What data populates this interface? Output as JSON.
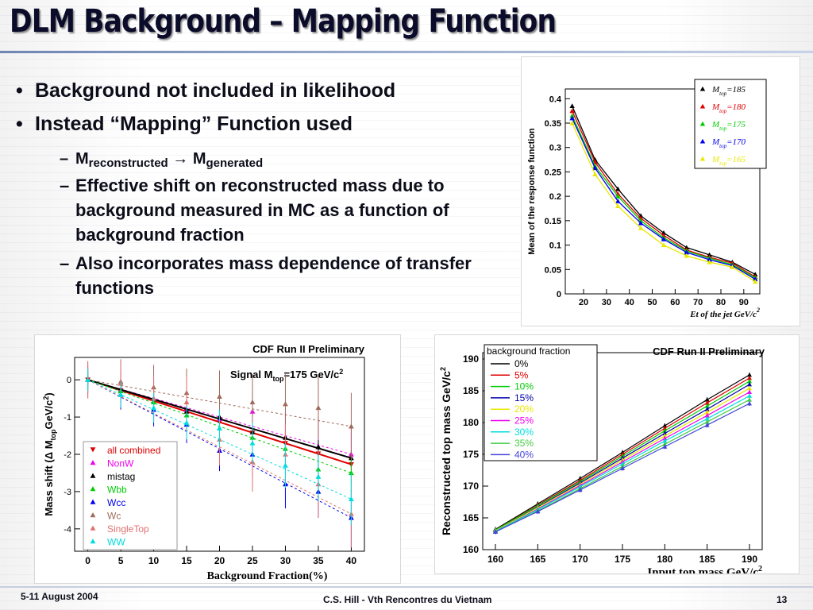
{
  "slide": {
    "title": "DLM Background – Mapping Function",
    "bullets": [
      {
        "text": "Background not included in likelihood"
      },
      {
        "text": "Instead “Mapping” Function used"
      }
    ],
    "mapping": {
      "m": "M",
      "sub1": "reconstructed",
      "arrow": "→",
      "m2": "M",
      "sub2": "generated"
    },
    "sub_bullets": [
      "Effective shift on reconstructed mass due to background measured in MC as a function of background fraction",
      "Also incorporates mass dependence of transfer functions"
    ],
    "footer": {
      "date": "5-11 August 2004",
      "author": "C.S. Hill  - Vth Rencontres du Vietnam",
      "page": "13"
    }
  },
  "chart_data": [
    {
      "type": "line",
      "title": "",
      "xlabel": "Et of the jet GeV/c",
      "xlabel_sup": "2",
      "ylabel": "Mean of the response function",
      "xlim": [
        12,
        97
      ],
      "ylim": [
        0,
        0.42
      ],
      "x_ticks": [
        20,
        30,
        40,
        50,
        60,
        70,
        80,
        90
      ],
      "y_ticks": [
        0,
        0.05,
        0.1,
        0.15,
        0.2,
        0.25,
        0.3,
        0.35,
        0.4
      ],
      "x": [
        15,
        25,
        35,
        45,
        55,
        65,
        75,
        85,
        95
      ],
      "legend_position": "top-right",
      "series": [
        {
          "name": "M top=185",
          "label_main": "M",
          "label_sub": "top",
          "label_rest": "=185",
          "color": "#000000",
          "values": [
            0.385,
            0.275,
            0.215,
            0.16,
            0.125,
            0.095,
            0.08,
            0.065,
            0.04
          ]
        },
        {
          "name": "M top=180",
          "label_main": "M",
          "label_sub": "top",
          "label_rest": "=180",
          "color": "#e00000",
          "values": [
            0.375,
            0.27,
            0.205,
            0.155,
            0.12,
            0.09,
            0.075,
            0.063,
            0.035
          ]
        },
        {
          "name": "M top=175",
          "label_main": "M",
          "label_sub": "top",
          "label_rest": "=175",
          "color": "#00cc00",
          "values": [
            0.365,
            0.262,
            0.2,
            0.15,
            0.115,
            0.088,
            0.073,
            0.06,
            0.033
          ]
        },
        {
          "name": "M top=170",
          "label_main": "M",
          "label_sub": "top",
          "label_rest": "=170",
          "color": "#0000ee",
          "values": [
            0.36,
            0.258,
            0.19,
            0.145,
            0.112,
            0.085,
            0.07,
            0.058,
            0.03
          ]
        },
        {
          "name": "M top=165",
          "label_main": "M",
          "label_sub": "top",
          "label_rest": "=165",
          "color": "#e8e800",
          "values": [
            0.35,
            0.245,
            0.18,
            0.135,
            0.1,
            0.078,
            0.065,
            0.055,
            0.025
          ]
        }
      ]
    },
    {
      "type": "scatter",
      "title": "CDF Run II Preliminary",
      "annotation": {
        "pre": "Signal M",
        "sub": "top",
        "post": "=175 GeV/c",
        "sup": "2"
      },
      "xlabel": "Background Fraction(%)",
      "ylabel": {
        "pre": "Mass shift (Δ M",
        "sub": "top",
        "post": "GeV/c",
        "sup": "2",
        "close": ")"
      },
      "xlim": [
        -2,
        42
      ],
      "ylim": [
        -4.6,
        0.6
      ],
      "x_ticks": [
        0,
        5,
        10,
        15,
        20,
        25,
        30,
        35,
        40
      ],
      "y_ticks": [
        0,
        -1,
        -2,
        -3,
        -4
      ],
      "x": [
        0,
        5,
        10,
        15,
        20,
        25,
        30,
        35,
        40
      ],
      "legend_position": "bottom-left",
      "series": [
        {
          "name": "all combined",
          "color": "#e00000",
          "marker": "down",
          "values": [
            0,
            -0.28,
            -0.57,
            -0.85,
            -1.13,
            -1.42,
            -1.7,
            -1.98,
            -2.27
          ],
          "err": [
            0.05,
            0.05,
            0.06,
            0.07,
            0.08,
            0.09,
            0.1,
            0.12,
            0.14
          ]
        },
        {
          "name": "NonW",
          "color": "#ee00ee",
          "marker": "up",
          "values": [
            0,
            -0.26,
            -0.5,
            -0.8,
            -1.05,
            -0.85,
            -1.55,
            -1.8,
            -2.0
          ],
          "err": [
            0.4,
            0.5,
            0.5,
            0.6,
            0.6,
            0.7,
            0.7,
            0.8,
            0.8
          ]
        },
        {
          "name": "mistag",
          "color": "#000000",
          "marker": "up",
          "values": [
            0,
            -0.3,
            -0.6,
            -0.85,
            -1.0,
            -1.4,
            -1.55,
            -1.8,
            -2.1
          ],
          "err": [
            0.1,
            0.1,
            0.12,
            0.14,
            0.15,
            0.16,
            0.17,
            0.18,
            0.2
          ]
        },
        {
          "name": "Wbb",
          "color": "#00cc00",
          "marker": "up",
          "values": [
            0,
            -0.3,
            -0.6,
            -0.95,
            -1.3,
            -1.55,
            -1.85,
            -2.4,
            -2.5
          ],
          "err": [
            0.15,
            0.2,
            0.25,
            0.3,
            0.3,
            0.35,
            0.4,
            0.45,
            0.5
          ]
        },
        {
          "name": "Wcc",
          "color": "#0000ee",
          "marker": "up",
          "values": [
            0,
            -0.4,
            -0.8,
            -1.2,
            -1.9,
            -2.0,
            -2.8,
            -3.0,
            -3.7
          ],
          "err": [
            0.3,
            0.4,
            0.45,
            0.5,
            0.55,
            0.6,
            0.65,
            0.7,
            0.75
          ]
        },
        {
          "name": "Wc",
          "color": "#a06a5a",
          "marker": "up",
          "values": [
            0,
            -0.05,
            -0.2,
            -0.35,
            -0.45,
            -0.6,
            -0.65,
            -0.75,
            -1.25
          ],
          "err": [
            0.5,
            0.6,
            0.6,
            0.65,
            0.7,
            0.75,
            0.8,
            0.85,
            0.9
          ]
        },
        {
          "name": "SingleTop",
          "color": "#e07070",
          "marker": "up",
          "values": [
            0,
            -0.1,
            -0.5,
            -0.6,
            -1.6,
            -2.2,
            -2.0,
            -2.8,
            -3.6
          ],
          "err": [
            0.5,
            0.6,
            0.6,
            0.7,
            0.7,
            0.8,
            0.8,
            0.9,
            0.9
          ]
        },
        {
          "name": "WW",
          "color": "#00dddd",
          "marker": "up",
          "values": [
            0,
            -0.4,
            -0.75,
            -1.15,
            -1.3,
            -1.7,
            -2.3,
            -2.6,
            -3.2
          ],
          "err": [
            0.3,
            0.35,
            0.4,
            0.45,
            0.5,
            0.55,
            0.6,
            0.65,
            0.7
          ]
        }
      ]
    },
    {
      "type": "line",
      "title": "CDF Run II Preliminary",
      "xlabel": "Input top mass GeV/c",
      "xlabel_sup": "2",
      "ylabel": "Reconstructed top mass GeV/c",
      "ylabel_sup": "2",
      "legend_title": "background fraction",
      "legend_position": "top-left",
      "xlim": [
        158.5,
        191.5
      ],
      "ylim": [
        160,
        191
      ],
      "x_ticks": [
        160,
        165,
        170,
        175,
        180,
        185,
        190
      ],
      "y_ticks": [
        160,
        165,
        170,
        175,
        180,
        185,
        190
      ],
      "x": [
        160,
        165,
        170,
        175,
        180,
        185,
        190
      ],
      "series": [
        {
          "name": "0%",
          "color": "#000000",
          "values": [
            163.2,
            167.2,
            171.2,
            175.3,
            179.5,
            183.6,
            187.5
          ]
        },
        {
          "name": "5%",
          "color": "#e00000",
          "values": [
            163.1,
            167.0,
            170.9,
            175.0,
            179.1,
            183.1,
            187.0
          ]
        },
        {
          "name": "10%",
          "color": "#00cc00",
          "values": [
            163.1,
            166.9,
            170.7,
            174.7,
            178.7,
            182.6,
            186.5
          ]
        },
        {
          "name": "15%",
          "color": "#0000aa",
          "values": [
            163.0,
            166.7,
            170.5,
            174.4,
            178.3,
            182.1,
            186.0
          ]
        },
        {
          "name": "20%",
          "color": "#e8e800",
          "values": [
            163.0,
            166.6,
            170.3,
            174.1,
            177.9,
            181.6,
            185.4
          ]
        },
        {
          "name": "25%",
          "color": "#ee00ee",
          "values": [
            162.9,
            166.4,
            170.1,
            173.8,
            177.5,
            181.1,
            184.8
          ]
        },
        {
          "name": "30%",
          "color": "#00dddd",
          "values": [
            162.9,
            166.3,
            169.9,
            173.5,
            177.1,
            180.6,
            184.2
          ]
        },
        {
          "name": "35%",
          "color": "#44cc44",
          "values": [
            162.8,
            166.1,
            169.6,
            173.1,
            176.6,
            180.1,
            183.6
          ]
        },
        {
          "name": "40%",
          "color": "#4444dd",
          "values": [
            162.8,
            166.0,
            169.4,
            172.8,
            176.2,
            179.6,
            183.0
          ]
        }
      ]
    }
  ]
}
